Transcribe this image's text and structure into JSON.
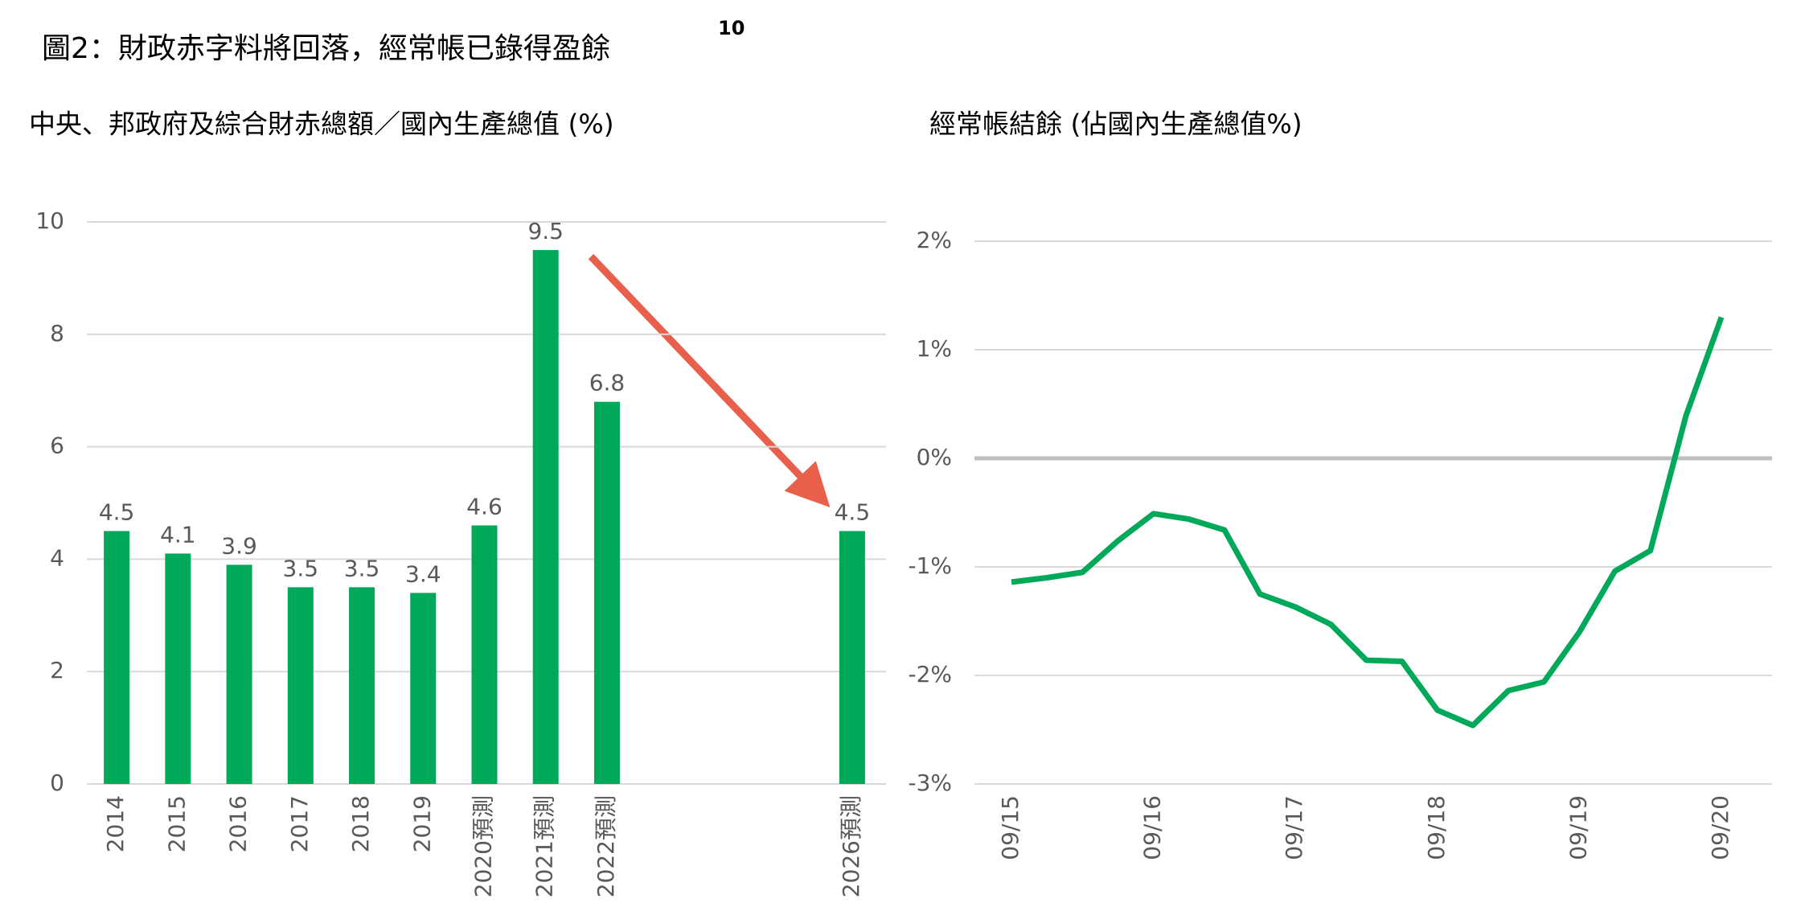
{
  "title": "圖2：財政赤字料將回落，經常帳已錄得盈餘",
  "title_sup": "10",
  "chart_data": [
    {
      "type": "bar",
      "title": "中央、邦政府及綜合財赤總額／國內生產總值 (%)",
      "categories": [
        "2014",
        "2015",
        "2016",
        "2017",
        "2018",
        "2019",
        "2020預測",
        "2021預測",
        "2022預測",
        null,
        null,
        null,
        "2026預測"
      ],
      "values": [
        4.5,
        4.1,
        3.9,
        3.5,
        3.5,
        3.4,
        4.6,
        9.5,
        6.8,
        null,
        null,
        null,
        4.5
      ],
      "color": "#00a85a",
      "ylim": [
        0,
        10
      ],
      "yticks": [
        0,
        2,
        4,
        6,
        8,
        10
      ],
      "grid": true
    },
    {
      "type": "line",
      "title": "經常帳結餘 (佔國內生產總值%)",
      "categories": [
        "09/15",
        null,
        null,
        null,
        "09/16",
        null,
        null,
        null,
        "09/17",
        null,
        null,
        null,
        "09/18",
        null,
        null,
        null,
        "09/19",
        null,
        null,
        null,
        "09/20"
      ],
      "values": [
        -1.14,
        -1.1,
        -1.05,
        -0.76,
        -0.51,
        -0.56,
        -0.66,
        -1.25,
        -1.37,
        -1.53,
        -1.86,
        -1.87,
        -2.32,
        -2.46,
        -2.14,
        -2.06,
        -1.6,
        -1.04,
        -0.85,
        0.39,
        1.3
      ],
      "color": "#00a85a",
      "ylim": [
        -3,
        2
      ],
      "yticks": [
        {
          "value": -3,
          "label": "-3%"
        },
        {
          "value": -2,
          "label": "-2%"
        },
        {
          "value": -1,
          "label": "-1%"
        },
        {
          "value": 0,
          "label": "0%"
        },
        {
          "value": 1,
          "label": "1%"
        },
        {
          "value": 2,
          "label": "2%"
        }
      ],
      "grid": true
    }
  ]
}
